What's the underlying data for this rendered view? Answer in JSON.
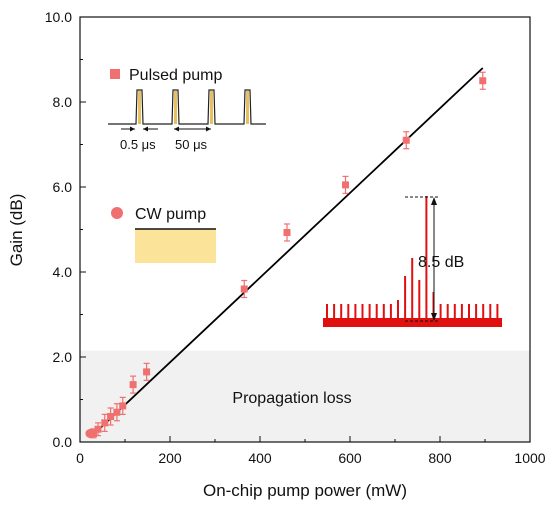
{
  "chart_data": {
    "type": "scatter",
    "xlabel": "On-chip pump power (mW)",
    "ylabel": "Gain (dB)",
    "xlim": [
      0,
      1000
    ],
    "ylim": [
      0,
      10
    ],
    "xticks": [
      0,
      200,
      400,
      600,
      800,
      1000
    ],
    "yticks": [
      0.0,
      2.0,
      4.0,
      6.0,
      8.0,
      10.0
    ],
    "xtick_labels": [
      "0",
      "200",
      "400",
      "600",
      "800",
      "1000"
    ],
    "ytick_labels": [
      "0.0",
      "2.0",
      "4.0",
      "6.0",
      "8.0",
      "10.0"
    ],
    "series": [
      {
        "name": "Pulsed pump",
        "marker": "square",
        "color": "#f07070",
        "points": [
          {
            "x": 30,
            "y": 0.2,
            "err": 0.1
          },
          {
            "x": 40,
            "y": 0.3,
            "err": 0.15
          },
          {
            "x": 55,
            "y": 0.45,
            "err": 0.2
          },
          {
            "x": 68,
            "y": 0.6,
            "err": 0.2
          },
          {
            "x": 82,
            "y": 0.7,
            "err": 0.2
          },
          {
            "x": 95,
            "y": 0.85,
            "err": 0.2
          },
          {
            "x": 118,
            "y": 1.35,
            "err": 0.2
          },
          {
            "x": 148,
            "y": 1.65,
            "err": 0.2
          },
          {
            "x": 365,
            "y": 3.6,
            "err": 0.2
          },
          {
            "x": 460,
            "y": 4.93,
            "err": 0.2
          },
          {
            "x": 590,
            "y": 6.05,
            "err": 0.2
          },
          {
            "x": 725,
            "y": 7.1,
            "err": 0.2
          },
          {
            "x": 895,
            "y": 8.5,
            "err": 0.2
          }
        ]
      },
      {
        "name": "CW pump",
        "marker": "circle",
        "color": "#f07070",
        "points": [
          {
            "x": 22,
            "y": 0.2
          },
          {
            "x": 27,
            "y": 0.22
          }
        ]
      }
    ],
    "fit_line": {
      "x": [
        22,
        895
      ],
      "y": [
        0.1,
        8.8
      ],
      "color": "#000000"
    },
    "shaded_region": {
      "y": [
        0,
        2.15
      ],
      "label": "Propagation loss",
      "color": "#f1f1f1"
    },
    "inset_pulsed": {
      "label_width": "0.5 μs",
      "label_period": "50 μs",
      "pulse_color": "#e8c060"
    },
    "inset_cw": {
      "fill_color": "#fbe39a"
    },
    "inset_spectrum": {
      "label": "8.5 dB",
      "color": "#e01010"
    },
    "legend": {
      "placement": "top-left"
    },
    "grid": false
  }
}
